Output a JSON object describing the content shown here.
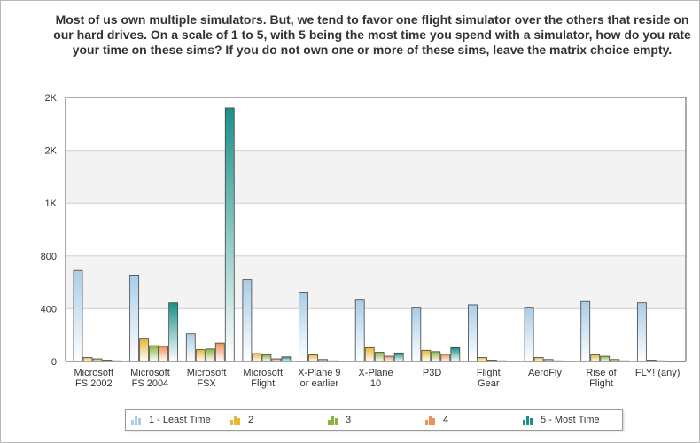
{
  "title": "Most of us own multiple simulators. But, we tend to favor one flight simulator over the others that reside on our hard drives. On a scale of 1 to 5, with 5 being the most time you spend with a simulator, how do you rate your time on these sims?   If you do not own one or more of these sims, leave the matrix choice empty.",
  "chart_data": {
    "type": "bar",
    "categories": [
      [
        "Microsoft",
        "FS 2002"
      ],
      [
        "Microsoft",
        "FS 2004"
      ],
      [
        "Microsoft",
        "FSX"
      ],
      [
        "Microsoft",
        "Flight"
      ],
      [
        "X-Plane 9",
        "or earlier"
      ],
      [
        "X-Plane",
        "10"
      ],
      [
        "P3D"
      ],
      [
        "Flight",
        "Gear"
      ],
      [
        "AeroFly"
      ],
      [
        "Rise of",
        "Flight"
      ],
      [
        "FLY! (any)"
      ]
    ],
    "series": [
      {
        "name": "1 - Least Time",
        "color": "#a9cde8",
        "values": [
          690,
          655,
          210,
          620,
          520,
          465,
          405,
          430,
          405,
          455,
          445
        ]
      },
      {
        "name": "2",
        "color": "#e8b830",
        "values": [
          30,
          170,
          90,
          60,
          50,
          105,
          85,
          30,
          30,
          50,
          10
        ]
      },
      {
        "name": "3",
        "color": "#8ab340",
        "values": [
          20,
          120,
          95,
          50,
          15,
          70,
          75,
          10,
          15,
          40,
          5
        ]
      },
      {
        "name": "4",
        "color": "#f0905a",
        "values": [
          10,
          115,
          140,
          20,
          5,
          40,
          55,
          5,
          5,
          15,
          2
        ]
      },
      {
        "name": "5 - Most Time",
        "color": "#1a9088",
        "values": [
          5,
          445,
          1920,
          35,
          3,
          65,
          105,
          3,
          3,
          5,
          2
        ]
      }
    ],
    "yticks": [
      0,
      400,
      800,
      1200,
      1600,
      2000
    ],
    "ytick_labels": [
      "0",
      "400",
      "800",
      "1K",
      "2K",
      "2K"
    ],
    "ylim": [
      0,
      2000
    ],
    "grid": true,
    "legend_position": "bottom"
  }
}
